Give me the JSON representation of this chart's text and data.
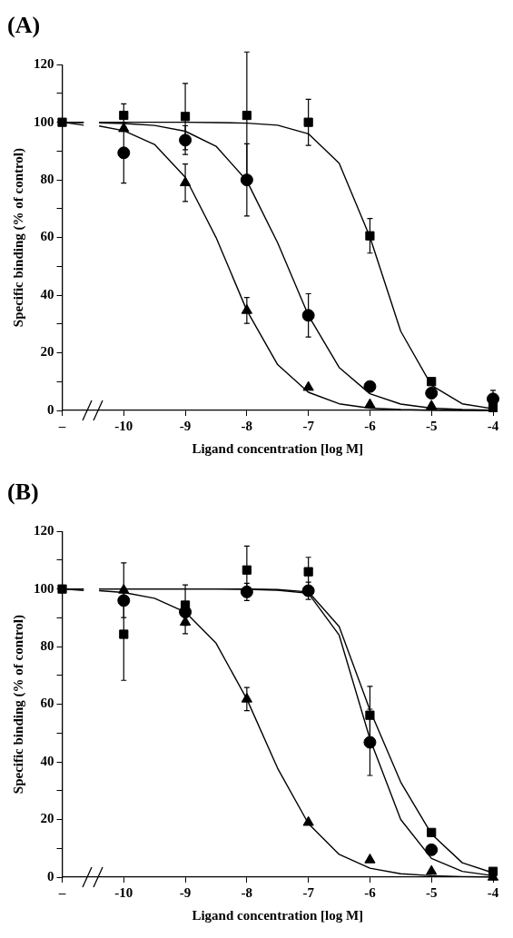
{
  "chart_data": [
    {
      "type": "scatter",
      "title": "(A)",
      "xlabel": "Ligand concentration [log M]",
      "ylabel": "Specific binding (% of control)",
      "x": [
        -11,
        -10,
        -9,
        -8,
        -7,
        -6,
        -5,
        -4
      ],
      "xlim": [
        -11,
        -4
      ],
      "xticks": [
        {
          "value": -11,
          "label": "–"
        },
        -10,
        -9,
        -8,
        -7,
        -6,
        -5,
        -4
      ],
      "ylim": [
        0,
        120
      ],
      "yticks": [
        0,
        {
          "value": 10,
          "label": null
        },
        20,
        {
          "value": 30,
          "label": null
        },
        40,
        {
          "value": 50,
          "label": null
        },
        60,
        {
          "value": 70,
          "label": null
        },
        80,
        {
          "value": 90,
          "label": null
        },
        100,
        {
          "value": 110,
          "label": null
        },
        120
      ],
      "grid": false,
      "series": [
        {
          "type": "scatter",
          "marker": "square",
          "color": "#000000",
          "values": [
            100,
            102.4,
            102,
            102.4,
            100,
            60.6,
            10,
            1
          ],
          "errors": [
            null,
            4,
            11.5,
            22,
            8,
            6,
            null,
            null
          ]
        },
        {
          "type": "scatter",
          "marker": "circle",
          "color": "#000000",
          "values": [
            null,
            89.4,
            93.8,
            80,
            33,
            8.3,
            6,
            4
          ],
          "errors": [
            null,
            10.5,
            5,
            12.5,
            7.5,
            null,
            null,
            3
          ]
        },
        {
          "type": "scatter",
          "marker": "triangle",
          "color": "#000000",
          "values": [
            null,
            97.8,
            79,
            34.7,
            8,
            2,
            1.5,
            null
          ],
          "errors": [
            null,
            null,
            6.5,
            4.5,
            null,
            null,
            null,
            null
          ]
        },
        {
          "type": "line",
          "marker": "none",
          "color": "#000000",
          "x": [
            -11,
            -10.65,
            -10.5,
            -10.4,
            -10,
            -9.5,
            -9,
            -8.5,
            -8,
            -7.5,
            -7,
            -6.5,
            -6,
            -5.5,
            -5,
            -4.5,
            -4
          ],
          "values": [
            100,
            100,
            null,
            100,
            100,
            100,
            100,
            99.9,
            99.7,
            99,
            96,
            85.8,
            60.2,
            27.5,
            8.7,
            2.3,
            0.6
          ]
        },
        {
          "type": "line",
          "marker": "none",
          "color": "#000000",
          "x": [
            -11,
            -10.65,
            -10.5,
            -10.4,
            -10,
            -9.5,
            -9,
            -8.5,
            -8,
            -7.5,
            -7,
            -6.5,
            -6,
            -5.5,
            -5,
            -4.5,
            -4
          ],
          "values": [
            100,
            99.9,
            null,
            99.8,
            99.6,
            98.9,
            96.9,
            91.7,
            79.7,
            58.2,
            33,
            14.9,
            5.8,
            2.2,
            0.8,
            0.3,
            0.1
          ]
        },
        {
          "type": "line",
          "marker": "none",
          "color": "#000000",
          "x": [
            -11,
            -10.65,
            -10.5,
            -10.4,
            -10,
            -9.5,
            -9,
            -8.5,
            -8,
            -7.5,
            -7,
            -6.5,
            -6,
            -5.5,
            -5,
            -4.5,
            -4
          ],
          "values": [
            100,
            99,
            null,
            98.7,
            97.1,
            92.3,
            80.9,
            60,
            34.7,
            15.9,
            6.3,
            2.3,
            0.8,
            0.3,
            0.1,
            0,
            0
          ]
        }
      ]
    },
    {
      "type": "scatter",
      "title": "(B)",
      "xlabel": "Ligand concentration [log M]",
      "ylabel": "Specific binding (% of control)",
      "x": [
        -11,
        -10,
        -9,
        -8,
        -7,
        -6,
        -5,
        -4
      ],
      "xlim": [
        -11,
        -4
      ],
      "xticks": [
        {
          "value": -11,
          "label": "–"
        },
        -10,
        -9,
        -8,
        -7,
        -6,
        -5,
        -4
      ],
      "ylim": [
        0,
        120
      ],
      "yticks": [
        0,
        {
          "value": 10,
          "label": null
        },
        20,
        {
          "value": 30,
          "label": null
        },
        40,
        {
          "value": 50,
          "label": null
        },
        60,
        {
          "value": 70,
          "label": null
        },
        80,
        {
          "value": 90,
          "label": null
        },
        100,
        {
          "value": 110,
          "label": null
        },
        120
      ],
      "grid": false,
      "series": [
        {
          "type": "scatter",
          "marker": "square",
          "color": "#000000",
          "values": [
            100,
            84.3,
            94.4,
            106.6,
            106,
            56.2,
            15.5,
            2
          ],
          "errors": [
            null,
            16,
            7,
            8.3,
            5,
            10,
            null,
            null
          ]
        },
        {
          "type": "scatter",
          "marker": "circle",
          "color": "#000000",
          "values": [
            null,
            96,
            92,
            99,
            99.4,
            46.8,
            9.5,
            null
          ],
          "errors": [
            null,
            null,
            null,
            3,
            3,
            11.5,
            null,
            null
          ]
        },
        {
          "type": "scatter",
          "marker": "triangle",
          "color": "#000000",
          "values": [
            null,
            99.6,
            88.5,
            61.8,
            19,
            6,
            2,
            0
          ],
          "errors": [
            null,
            9.5,
            4,
            4,
            null,
            null,
            null,
            null
          ]
        },
        {
          "type": "line",
          "marker": "none",
          "color": "#000000",
          "x": [
            -11,
            -10.65,
            -10.5,
            -10.4,
            -10,
            -9.5,
            -9,
            -8.5,
            -8,
            -7.5,
            -7,
            -6.5,
            -6,
            -5.5,
            -5,
            -4.5,
            -4
          ],
          "values": [
            100,
            100,
            null,
            100,
            100,
            100,
            100,
            100,
            100,
            99.8,
            99,
            87,
            58,
            33,
            15,
            5,
            1.5
          ]
        },
        {
          "type": "line",
          "marker": "none",
          "color": "#000000",
          "x": [
            -11,
            -10.65,
            -10.5,
            -10.4,
            -10,
            -9.5,
            -9,
            -8.5,
            -8,
            -7.5,
            -7,
            -6.5,
            -6,
            -5.5,
            -5,
            -4.5,
            -4
          ],
          "values": [
            100,
            100,
            null,
            100,
            100,
            100,
            100,
            100,
            99.9,
            99.6,
            98.5,
            84,
            48,
            20,
            6.5,
            2,
            0.5
          ]
        },
        {
          "type": "line",
          "marker": "none",
          "color": "#000000",
          "x": [
            -11,
            -10.65,
            -10.5,
            -10.4,
            -10,
            -9.5,
            -9,
            -8.5,
            -8,
            -7.5,
            -7,
            -6.5,
            -6,
            -5.5,
            -5,
            -4.5,
            -4
          ],
          "values": [
            100,
            99.5,
            null,
            99.4,
            98.8,
            96.8,
            92,
            81.2,
            61.8,
            37.8,
            18.6,
            7.9,
            3.1,
            1.2,
            0.5,
            0.2,
            0.1
          ]
        }
      ]
    }
  ]
}
